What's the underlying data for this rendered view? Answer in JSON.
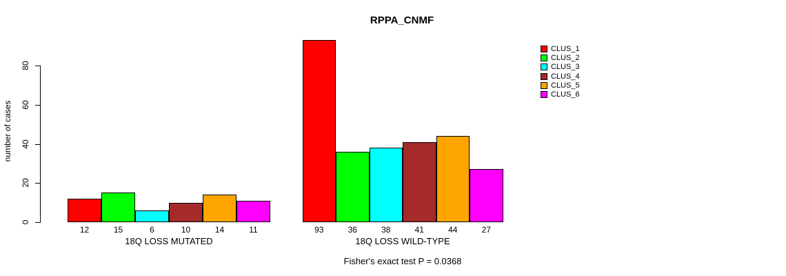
{
  "chart_data": {
    "type": "bar",
    "title": "RPPA_CNMF",
    "ylabel": "number of cases",
    "xlabel": "",
    "y_ticks": [
      0,
      20,
      40,
      60,
      80
    ],
    "ylim": [
      0,
      93
    ],
    "grid": false,
    "legend_position": "top-right",
    "series_labels": [
      "CLUS_1",
      "CLUS_2",
      "CLUS_3",
      "CLUS_4",
      "CLUS_5",
      "CLUS_6"
    ],
    "colors": [
      "#FF0000",
      "#00FF00",
      "#00FFFF",
      "#A52A2A",
      "#FFA500",
      "#FF00FF"
    ],
    "groups": [
      {
        "label": "18Q LOSS MUTATED",
        "values": [
          12,
          15,
          6,
          10,
          14,
          11
        ]
      },
      {
        "label": "18Q LOSS WILD-TYPE",
        "values": [
          93,
          36,
          38,
          41,
          44,
          27
        ]
      }
    ],
    "annotation": "Fisher's exact test P = 0.0368"
  }
}
